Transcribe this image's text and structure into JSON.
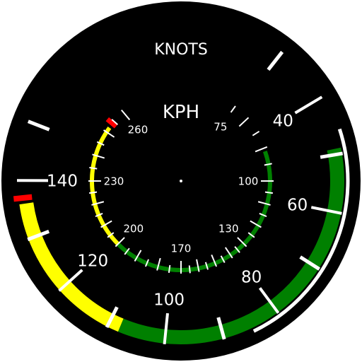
{
  "gauge": {
    "outer_unit": "KNOTS",
    "inner_unit": "KPH",
    "outer_scale": {
      "labels": [
        {
          "text": "40",
          "value": 40
        },
        {
          "text": "60",
          "value": 60
        },
        {
          "text": "80",
          "value": 80
        },
        {
          "text": "100",
          "value": 100
        },
        {
          "text": "120",
          "value": 120
        },
        {
          "text": "140",
          "value": 140
        }
      ],
      "white_arc_knots": [
        46,
        85
      ],
      "green_arc_knots": [
        49,
        108
      ],
      "yellow_arc_knots": [
        108,
        136
      ],
      "redline_knots": 137
    },
    "inner_scale": {
      "labels": [
        {
          "text": "75",
          "value": 75
        },
        {
          "text": "100",
          "value": 100
        },
        {
          "text": "130",
          "value": 130
        },
        {
          "text": "170",
          "value": 170
        },
        {
          "text": "200",
          "value": 200
        },
        {
          "text": "230",
          "value": 230
        },
        {
          "text": "260",
          "value": 260
        }
      ],
      "green_arc_kph": [
        91,
        200
      ],
      "yellow_arc_kph": [
        200,
        252
      ],
      "redline_kph": 254
    },
    "colors": {
      "face": "#000000",
      "ticks": "#ffffff",
      "green": "#008000",
      "yellow": "#ffff00",
      "red": "#ff0000",
      "white_arc": "#ffffff"
    }
  }
}
